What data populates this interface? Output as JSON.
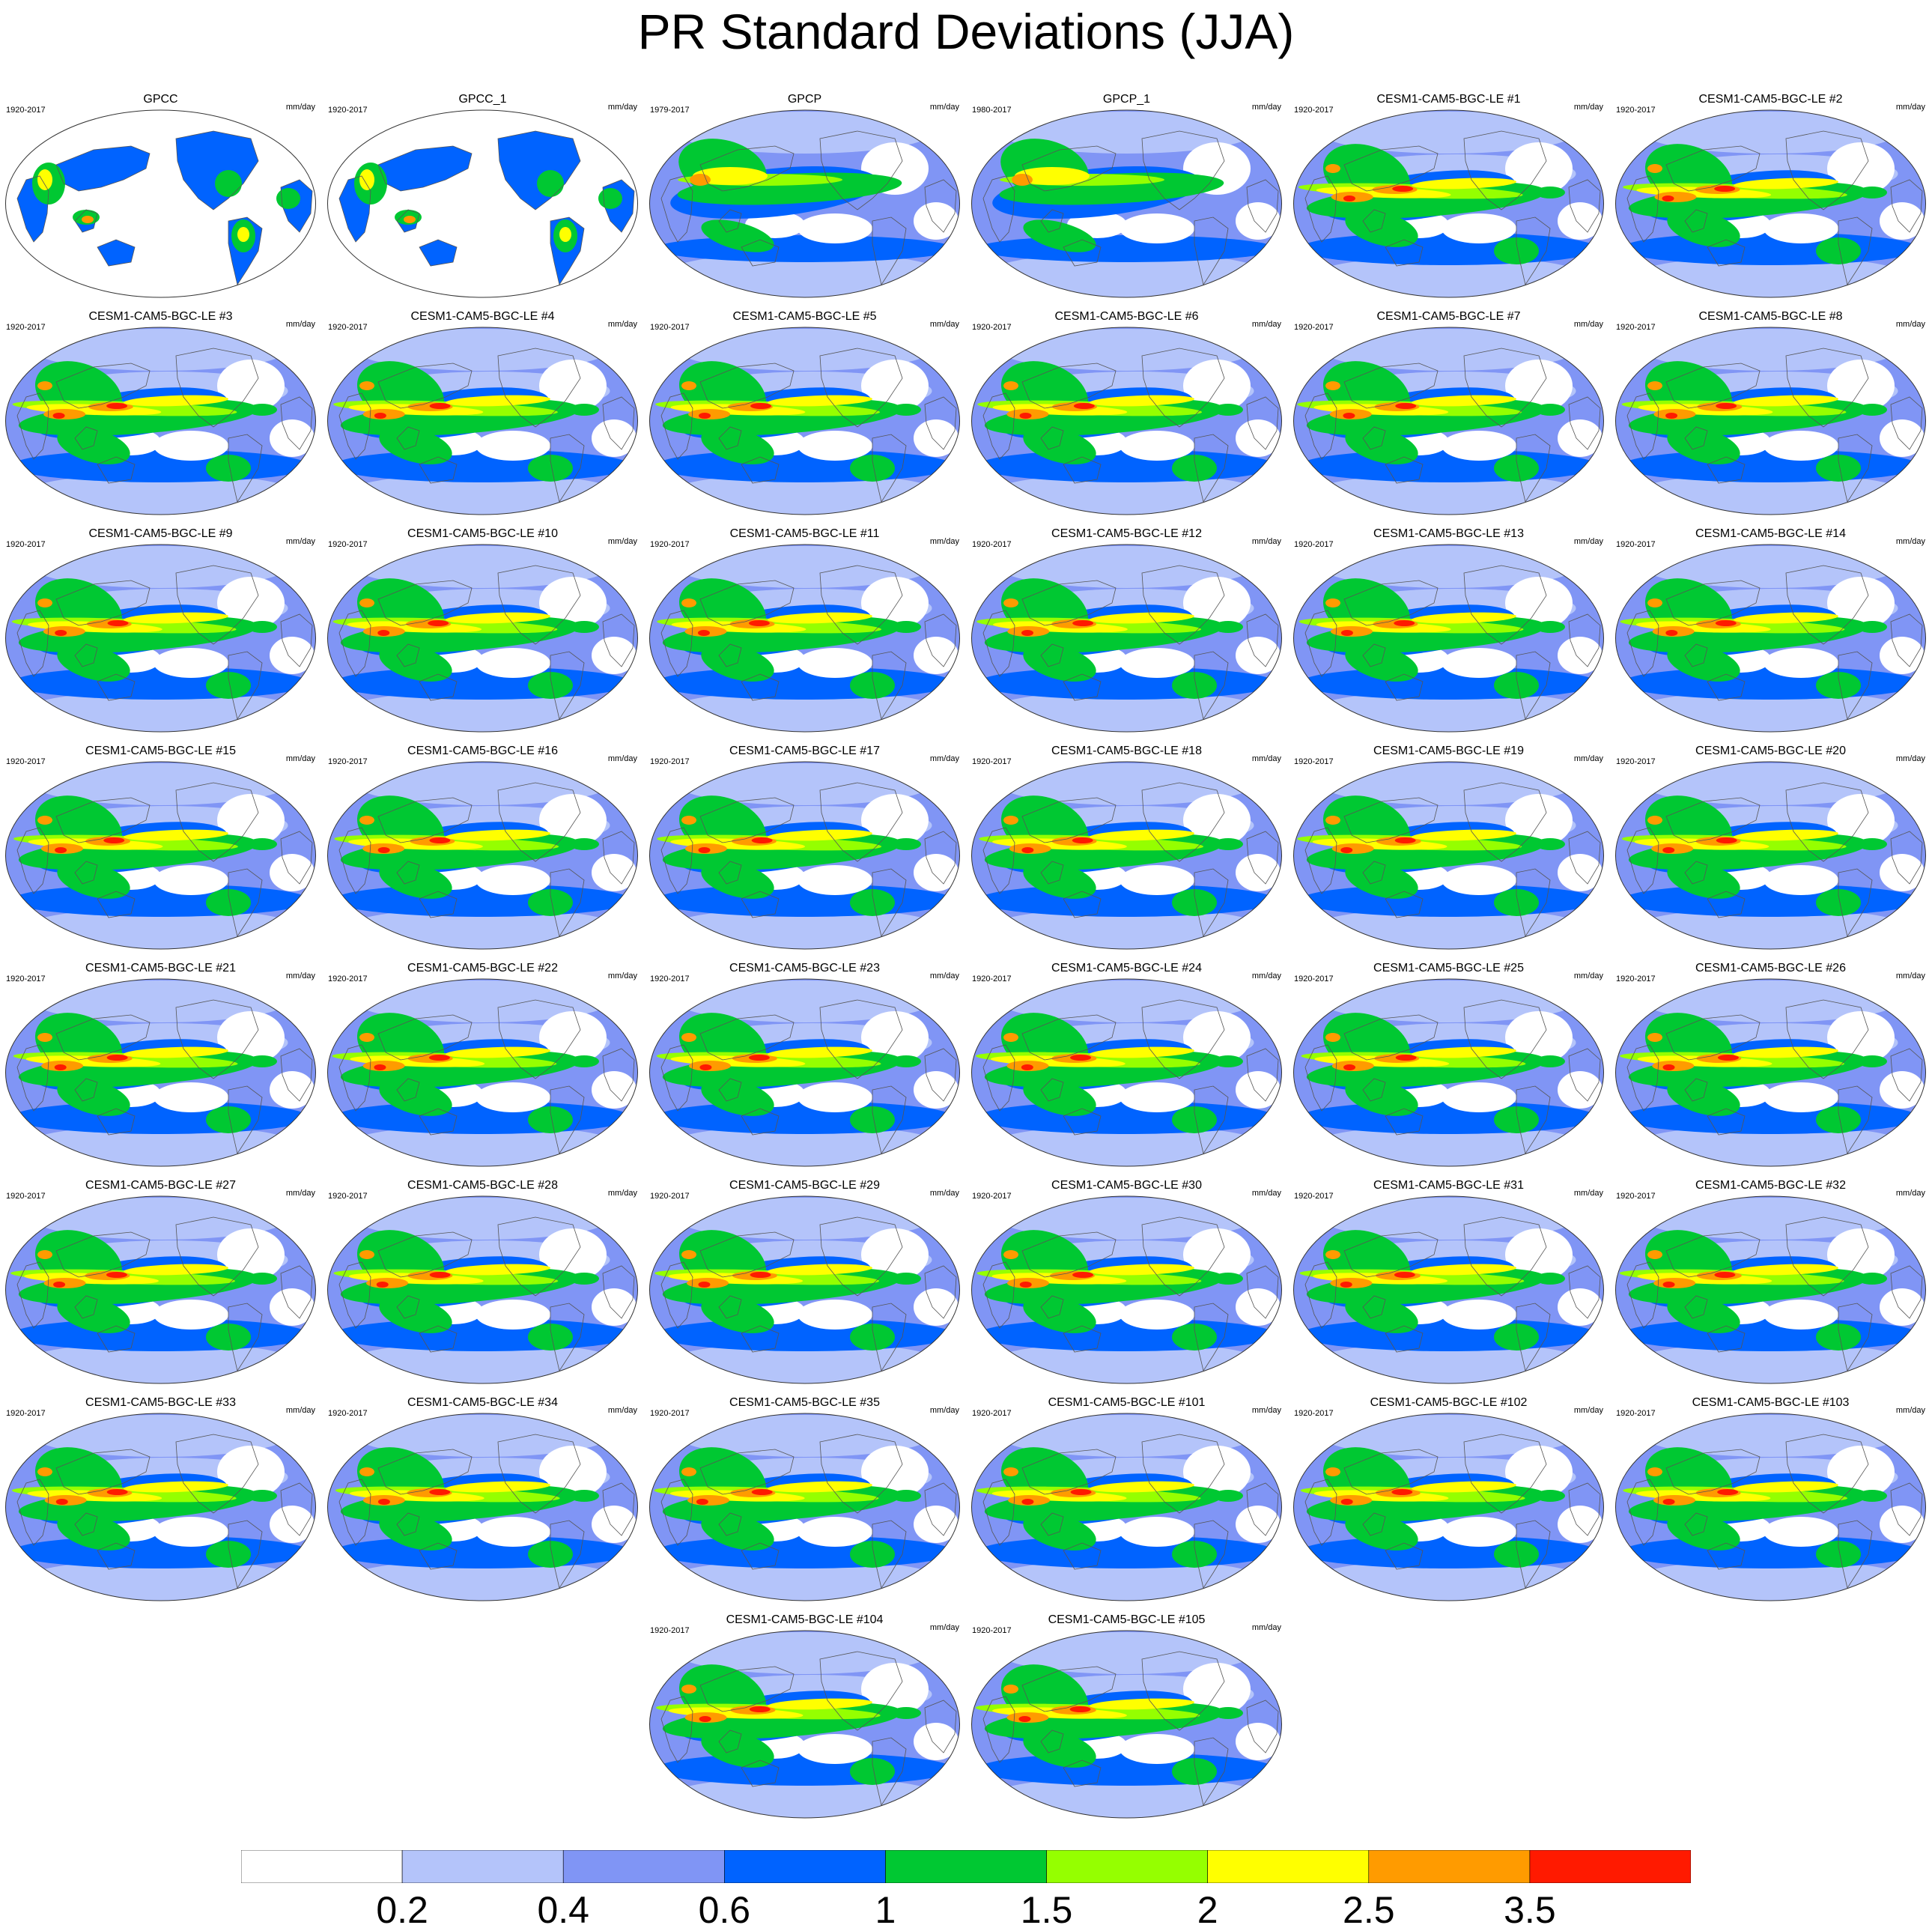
{
  "title": "PR Standard Deviations (JJA)",
  "units": "mm/day",
  "panels": [
    {
      "name": "GPCC",
      "years": "1920-2017",
      "kind": "gpcc"
    },
    {
      "name": "GPCC_1",
      "years": "1920-2017",
      "kind": "gpcc"
    },
    {
      "name": "GPCP",
      "years": "1979-2017",
      "kind": "gpcp"
    },
    {
      "name": "GPCP_1",
      "years": "1980-2017",
      "kind": "gpcp"
    },
    {
      "name": "CESM1-CAM5-BGC-LE #1",
      "years": "1920-2017",
      "kind": "model"
    },
    {
      "name": "CESM1-CAM5-BGC-LE #2",
      "years": "1920-2017",
      "kind": "model"
    },
    {
      "name": "CESM1-CAM5-BGC-LE #3",
      "years": "1920-2017",
      "kind": "model"
    },
    {
      "name": "CESM1-CAM5-BGC-LE #4",
      "years": "1920-2017",
      "kind": "model"
    },
    {
      "name": "CESM1-CAM5-BGC-LE #5",
      "years": "1920-2017",
      "kind": "model"
    },
    {
      "name": "CESM1-CAM5-BGC-LE #6",
      "years": "1920-2017",
      "kind": "model"
    },
    {
      "name": "CESM1-CAM5-BGC-LE #7",
      "years": "1920-2017",
      "kind": "model"
    },
    {
      "name": "CESM1-CAM5-BGC-LE #8",
      "years": "1920-2017",
      "kind": "model"
    },
    {
      "name": "CESM1-CAM5-BGC-LE #9",
      "years": "1920-2017",
      "kind": "model"
    },
    {
      "name": "CESM1-CAM5-BGC-LE #10",
      "years": "1920-2017",
      "kind": "model"
    },
    {
      "name": "CESM1-CAM5-BGC-LE #11",
      "years": "1920-2017",
      "kind": "model"
    },
    {
      "name": "CESM1-CAM5-BGC-LE #12",
      "years": "1920-2017",
      "kind": "model"
    },
    {
      "name": "CESM1-CAM5-BGC-LE #13",
      "years": "1920-2017",
      "kind": "model"
    },
    {
      "name": "CESM1-CAM5-BGC-LE #14",
      "years": "1920-2017",
      "kind": "model"
    },
    {
      "name": "CESM1-CAM5-BGC-LE #15",
      "years": "1920-2017",
      "kind": "model"
    },
    {
      "name": "CESM1-CAM5-BGC-LE #16",
      "years": "1920-2017",
      "kind": "model"
    },
    {
      "name": "CESM1-CAM5-BGC-LE #17",
      "years": "1920-2017",
      "kind": "model"
    },
    {
      "name": "CESM1-CAM5-BGC-LE #18",
      "years": "1920-2017",
      "kind": "model"
    },
    {
      "name": "CESM1-CAM5-BGC-LE #19",
      "years": "1920-2017",
      "kind": "model"
    },
    {
      "name": "CESM1-CAM5-BGC-LE #20",
      "years": "1920-2017",
      "kind": "model"
    },
    {
      "name": "CESM1-CAM5-BGC-LE #21",
      "years": "1920-2017",
      "kind": "model"
    },
    {
      "name": "CESM1-CAM5-BGC-LE #22",
      "years": "1920-2017",
      "kind": "model"
    },
    {
      "name": "CESM1-CAM5-BGC-LE #23",
      "years": "1920-2017",
      "kind": "model"
    },
    {
      "name": "CESM1-CAM5-BGC-LE #24",
      "years": "1920-2017",
      "kind": "model"
    },
    {
      "name": "CESM1-CAM5-BGC-LE #25",
      "years": "1920-2017",
      "kind": "model"
    },
    {
      "name": "CESM1-CAM5-BGC-LE #26",
      "years": "1920-2017",
      "kind": "model"
    },
    {
      "name": "CESM1-CAM5-BGC-LE #27",
      "years": "1920-2017",
      "kind": "model"
    },
    {
      "name": "CESM1-CAM5-BGC-LE #28",
      "years": "1920-2017",
      "kind": "model"
    },
    {
      "name": "CESM1-CAM5-BGC-LE #29",
      "years": "1920-2017",
      "kind": "model"
    },
    {
      "name": "CESM1-CAM5-BGC-LE #30",
      "years": "1920-2017",
      "kind": "model"
    },
    {
      "name": "CESM1-CAM5-BGC-LE #31",
      "years": "1920-2017",
      "kind": "model"
    },
    {
      "name": "CESM1-CAM5-BGC-LE #32",
      "years": "1920-2017",
      "kind": "model"
    },
    {
      "name": "CESM1-CAM5-BGC-LE #33",
      "years": "1920-2017",
      "kind": "model"
    },
    {
      "name": "CESM1-CAM5-BGC-LE #34",
      "years": "1920-2017",
      "kind": "model"
    },
    {
      "name": "CESM1-CAM5-BGC-LE #35",
      "years": "1920-2017",
      "kind": "model"
    },
    {
      "name": "CESM1-CAM5-BGC-LE #101",
      "years": "1920-2017",
      "kind": "model"
    },
    {
      "name": "CESM1-CAM5-BGC-LE #102",
      "years": "1920-2017",
      "kind": "model"
    },
    {
      "name": "CESM1-CAM5-BGC-LE #103",
      "years": "1920-2017",
      "kind": "model"
    },
    {
      "name": "CESM1-CAM5-BGC-LE #104",
      "years": "1920-2017",
      "kind": "model"
    },
    {
      "name": "CESM1-CAM5-BGC-LE #105",
      "years": "1920-2017",
      "kind": "model"
    }
  ],
  "colorbar": {
    "colors": [
      "#ffffff",
      "#b4c4fa",
      "#8095f5",
      "#0063ff",
      "#00c832",
      "#95ff00",
      "#ffff00",
      "#ff9b00",
      "#ff1a00"
    ],
    "labels": [
      "0.2",
      "0.4",
      "0.6",
      "1",
      "1.5",
      "2",
      "2.5",
      "3.5"
    ]
  }
}
